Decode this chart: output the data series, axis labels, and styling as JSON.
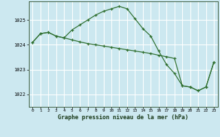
{
  "background_color": "#cce8f0",
  "grid_color": "#ffffff",
  "line_color": "#2d6e2d",
  "marker_color": "#2d6e2d",
  "xlabel": "Graphe pression niveau de la mer (hPa)",
  "ylim": [
    1021.5,
    1025.75
  ],
  "xlim": [
    -0.5,
    23.5
  ],
  "yticks": [
    1022,
    1023,
    1024,
    1025
  ],
  "xticks": [
    0,
    1,
    2,
    3,
    4,
    5,
    6,
    7,
    8,
    9,
    10,
    11,
    12,
    13,
    14,
    15,
    16,
    17,
    18,
    19,
    20,
    21,
    22,
    23
  ],
  "series1_x": [
    0,
    1,
    2,
    3,
    4,
    5,
    6,
    7,
    8,
    9,
    10,
    11,
    12,
    13,
    14,
    15,
    16,
    17,
    18,
    19,
    20,
    21,
    22,
    23
  ],
  "series1_y": [
    1024.1,
    1024.45,
    1024.5,
    1024.35,
    1024.28,
    1024.6,
    1024.8,
    1025.0,
    1025.2,
    1025.35,
    1025.45,
    1025.55,
    1025.45,
    1025.05,
    1024.65,
    1024.35,
    1023.75,
    1023.2,
    1022.85,
    1022.35,
    1022.3,
    1022.15,
    1022.3,
    1023.3
  ],
  "series2_x": [
    0,
    1,
    2,
    3,
    4,
    5,
    6,
    7,
    8,
    9,
    10,
    11,
    12,
    13,
    14,
    15,
    16,
    17,
    18,
    19,
    20,
    21,
    22,
    23
  ],
  "series2_y": [
    1024.1,
    1024.45,
    1024.5,
    1024.35,
    1024.28,
    1024.2,
    1024.12,
    1024.05,
    1024.0,
    1023.95,
    1023.9,
    1023.85,
    1023.8,
    1023.75,
    1023.7,
    1023.65,
    1023.58,
    1023.52,
    1023.45,
    1022.35,
    1022.3,
    1022.15,
    1022.3,
    1023.3
  ]
}
